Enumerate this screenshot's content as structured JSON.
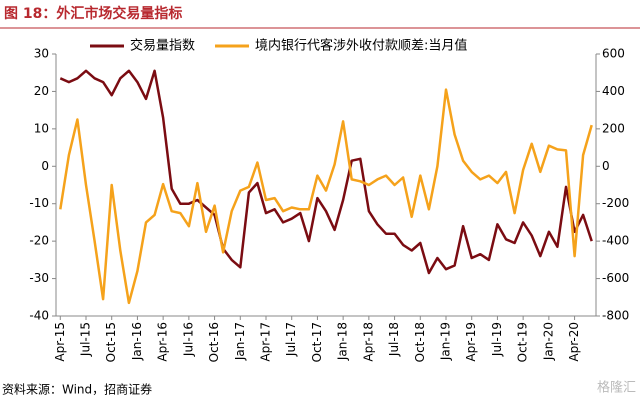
{
  "title": "图 18：外汇市场交易量指标",
  "source": "资料来源：Wind，招商证券",
  "watermark": "格隆汇",
  "chart_data": {
    "type": "line",
    "categories": [
      "Apr-15",
      null,
      null,
      "Jul-15",
      null,
      null,
      "Oct-15",
      null,
      null,
      "Jan-16",
      null,
      null,
      "Apr-16",
      null,
      null,
      "Jul-16",
      null,
      null,
      "Oct-16",
      null,
      null,
      "Jan-17",
      null,
      null,
      "Apr-17",
      null,
      null,
      "Jul-17",
      null,
      null,
      "Oct-17",
      null,
      null,
      "Jan-18",
      null,
      null,
      "Apr-18",
      null,
      null,
      "Jul-18",
      null,
      null,
      "Oct-18",
      null,
      null,
      "Jan-19",
      null,
      null,
      "Apr-19",
      null,
      null,
      "Jul-19",
      null,
      null,
      "Oct-19",
      null,
      null,
      "Jan-20",
      null,
      null,
      "Apr-20",
      null,
      null
    ],
    "series": [
      {
        "name": "交易量指数",
        "color": "#7b0c12",
        "axis": "y",
        "values": [
          23.5,
          22.5,
          23.5,
          25.5,
          23.5,
          22.5,
          19,
          23.5,
          25.5,
          22.5,
          18,
          25.5,
          13,
          -6,
          -10,
          -10,
          -9,
          -11,
          -13,
          -22,
          -25,
          -27,
          -7,
          -4.5,
          -12.5,
          -11.5,
          -15,
          -14,
          -12.5,
          -20,
          -8.5,
          -12,
          -17,
          -9,
          1.5,
          2,
          -12,
          -15.5,
          -18,
          -18,
          -21,
          -22.5,
          -20.5,
          -28.5,
          -24.5,
          -27.5,
          -26.5,
          -16,
          -24.5,
          -23.5,
          -25,
          -15.5,
          -19.5,
          -20.5,
          -15,
          -18.5,
          -24,
          -17.5,
          -21.5,
          -5.5,
          -17.5,
          -13,
          -20
        ]
      },
      {
        "name": "境内银行代客涉外收付款顺差:当月值",
        "color": "#f5a21b",
        "axis": "y2",
        "values": [
          -230,
          60,
          250,
          -100,
          -400,
          -710,
          -100,
          -450,
          -730,
          -560,
          -300,
          -260,
          -95,
          -240,
          -250,
          -320,
          -90,
          -350,
          -210,
          -460,
          -240,
          -130,
          -110,
          20,
          -180,
          -170,
          -240,
          -220,
          -230,
          -230,
          -50,
          -130,
          10,
          240,
          -70,
          -80,
          -100,
          -70,
          -50,
          -100,
          -60,
          -270,
          -50,
          -230,
          0,
          410,
          170,
          30,
          -30,
          -70,
          -50,
          -90,
          -30,
          -250,
          -20,
          120,
          -30,
          110,
          90,
          85,
          -480,
          60,
          220
        ]
      }
    ],
    "ylim": [
      -40,
      30
    ],
    "yticks": [
      30,
      20,
      10,
      0,
      -10,
      -20,
      -30,
      -40
    ],
    "y2lim": [
      -800,
      600
    ],
    "y2ticks": [
      600,
      400,
      200,
      0,
      -200,
      -400,
      -600,
      -800
    ],
    "grid": false,
    "legend": "top"
  }
}
